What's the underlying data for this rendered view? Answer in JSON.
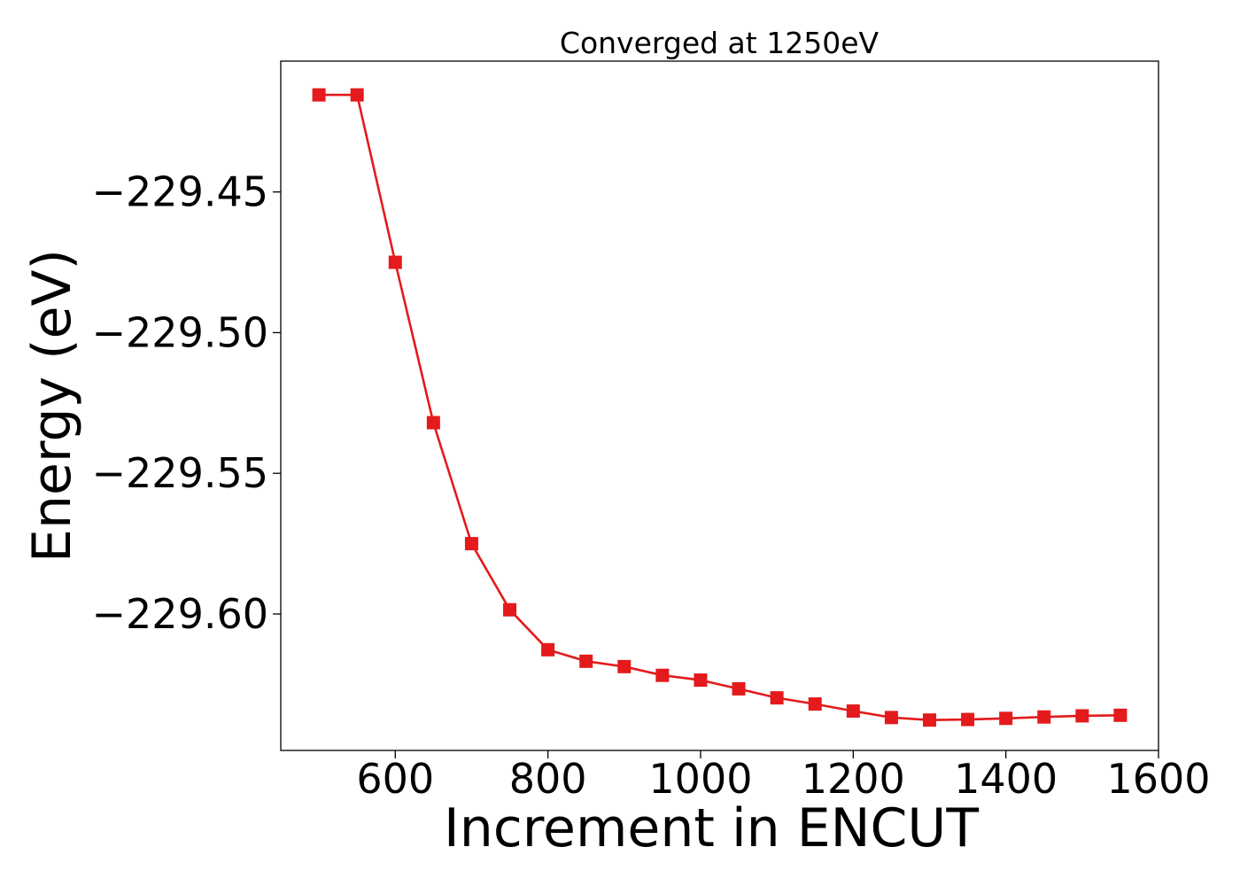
{
  "chart_data": {
    "type": "line",
    "title": "Converged at 1250eV",
    "xlabel": "Increment in ENCUT",
    "ylabel": "Energy (eV)",
    "xlim": [
      450,
      1600
    ],
    "ylim": [
      -229.6485,
      -229.4035
    ],
    "x_ticks": [
      600,
      800,
      1000,
      1200,
      1400,
      1600
    ],
    "y_ticks": [
      -229.45,
      -229.5,
      -229.55,
      -229.6
    ],
    "x_tick_labels": [
      "600",
      "800",
      "1000",
      "1200",
      "1400",
      "1600"
    ],
    "y_tick_labels": [
      "−229.45",
      "−229.50",
      "−229.55",
      "−229.60"
    ],
    "grid": false,
    "series": [
      {
        "color": "#e41a1c",
        "marker": "square",
        "x": [
          500,
          550,
          600,
          650,
          700,
          750,
          800,
          850,
          900,
          950,
          1000,
          1050,
          1100,
          1150,
          1200,
          1250,
          1300,
          1350,
          1400,
          1450,
          1500,
          1550
        ],
        "y": [
          -229.4155,
          -229.4155,
          -229.475,
          -229.532,
          -229.575,
          -229.5985,
          -229.6127,
          -229.6168,
          -229.6187,
          -229.6218,
          -229.6235,
          -229.6266,
          -229.6298,
          -229.632,
          -229.6345,
          -229.6368,
          -229.6377,
          -229.6375,
          -229.6371,
          -229.6366,
          -229.6362,
          -229.636
        ]
      }
    ]
  }
}
